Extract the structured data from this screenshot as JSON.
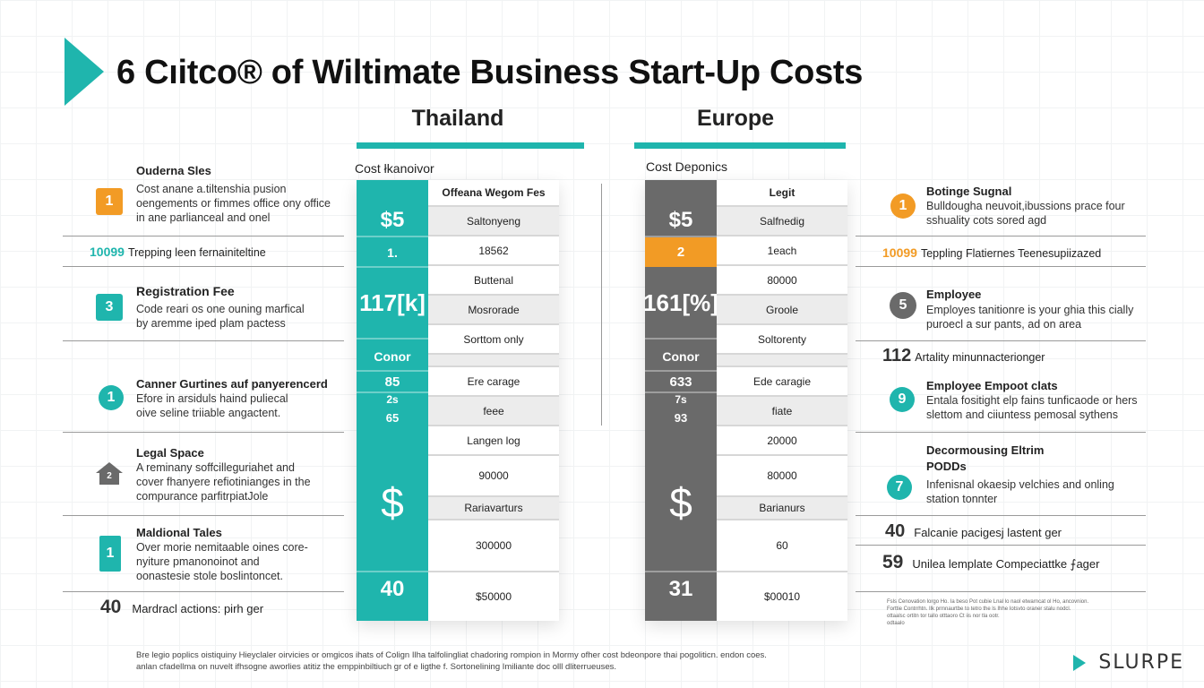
{
  "title": "6 Cıitco® of Wiltimate Business Start-Up Costs",
  "columns": {
    "thailand": {
      "heading": "Thailand",
      "subheading": "Cost łkanoivor",
      "strip_color": "#1fb5ad",
      "strip": [
        "$5",
        "1.",
        "117[k]",
        "Conor",
        "85",
        "2s",
        "65",
        "$",
        "40"
      ],
      "cells": [
        "Offeana Wegom Fes",
        "Saltonyeng",
        "18562",
        "Buttenal",
        "Mosrorade",
        "Sorttom only",
        "",
        "Ere carage",
        "feee",
        "Langen log",
        "90000",
        "Rariavarturs",
        "300000",
        "$50000"
      ]
    },
    "europe": {
      "heading": "Europe",
      "subheading": "Cost Deponics",
      "strip_color": "#6a6a6a",
      "accent_color": "#f29b25",
      "strip": [
        "$5",
        "2",
        "161[%]",
        "Conor",
        "633",
        "7s",
        "93",
        "$",
        "31"
      ],
      "cells": [
        "Legit",
        "Salfnedig",
        "1each",
        "80000",
        "Groole",
        "Soltorenty",
        "",
        "Ede caragie",
        "fiate",
        "20000",
        "80000",
        "Barianurs",
        "60",
        "$00010"
      ]
    }
  },
  "left": {
    "e1": {
      "badge": "1",
      "title": "Ouderna Sles",
      "desc": [
        "Cost anane a.tiltenshia pusion",
        "oengements or fimmes office ony office",
        "in ane parlianceal and onel"
      ]
    },
    "r1": {
      "num": "10099",
      "text": "Trepping leen fernainiteltine"
    },
    "e2": {
      "badge": "3",
      "title": "Registration Fee",
      "desc": [
        "Code reari os one ouning marfical",
        "by aremme iped plam pactess"
      ]
    },
    "e3": {
      "badge": "1",
      "title": "Canner Gurtines auf panyerencerd",
      "desc": [
        "Efore in arsiduls haind puliecal",
        "oive seline triiable angactent."
      ]
    },
    "e4": {
      "badge": "2",
      "title": "Legal Space",
      "desc": [
        "A reminany soffcilleguriahet and",
        "cover fhanyere refiotinianges in the",
        "compurance parfitrpiatJole"
      ]
    },
    "e5": {
      "badge": "1",
      "title": "Maldional Tales",
      "desc": [
        "Over morie nemitaable oines core-",
        "nyiture pmanonoinot and",
        "oonastesie stole boslintoncet."
      ]
    },
    "r2": {
      "num": "40",
      "text": "Mardracl actions: pirh ger"
    }
  },
  "right": {
    "e1": {
      "badge": "1",
      "title": "Botinge Sugnal",
      "desc": [
        "Bulldougha neuvoit,ibussions prace four",
        "sshuality cots sored agd"
      ]
    },
    "r1": {
      "num": "10099",
      "text": "Teppling Flatiernes Teenesupiizazed"
    },
    "e2": {
      "badge": "5",
      "title": "Employee",
      "desc": [
        "Employes tanitionre is your ghia this cially",
        "puroecl a sur pants, ad on area"
      ]
    },
    "r2": {
      "num": "112",
      "text": "Artality minunnacterionger"
    },
    "e3": {
      "badge": "9",
      "title": "Employee Empoot clats",
      "desc": [
        "Entala fositight elp fains tunficaode or hers",
        "slettom and ciiuntess pemosal sythens"
      ]
    },
    "e4": {
      "badge": "7",
      "title": "Decormousing Eltrim",
      "title2": "PODDs",
      "desc": [
        "Infenisnal okaesip velchies and onling",
        "station tonnter"
      ]
    },
    "r3": {
      "num": "40",
      "text": "Falcanie pacigesj lastent ger"
    },
    "r4": {
      "num": "59",
      "text": "Unilea lemplate Compeciattke ⨍ager"
    },
    "tiny": [
      "Fsls Cenovation lorgo Ho. Ia beso Pot cubie Lnal lo naol etwarncat ol Ho, ancovnion.",
      "Forttie Contrrhtn. Ilk prmnaurtbe to tetro the ls Ihhe Iotsvto oraner stalu nodcl.",
      "ottaalsc ortitn tor tallo otttaoro Ct iis nor tla ootr.",
      "odtaalo"
    ]
  },
  "footnote": [
    "Bre legio poplics oistiquiny Hieyclaler oirvicies or omgicos ihats of Colign Ilha talfolingliat chadoring rompion in Mormy ofher cost bdeonpore thai pogoliticn. endon coes.",
    "anlan cfadellma on nuvelt ifhsogne aworlies atitiz the emppinbiltiuch gr of e ligthe f. Sortonelining Imiliante doc olll dliterrueuses."
  ],
  "brand": "SLURPE"
}
